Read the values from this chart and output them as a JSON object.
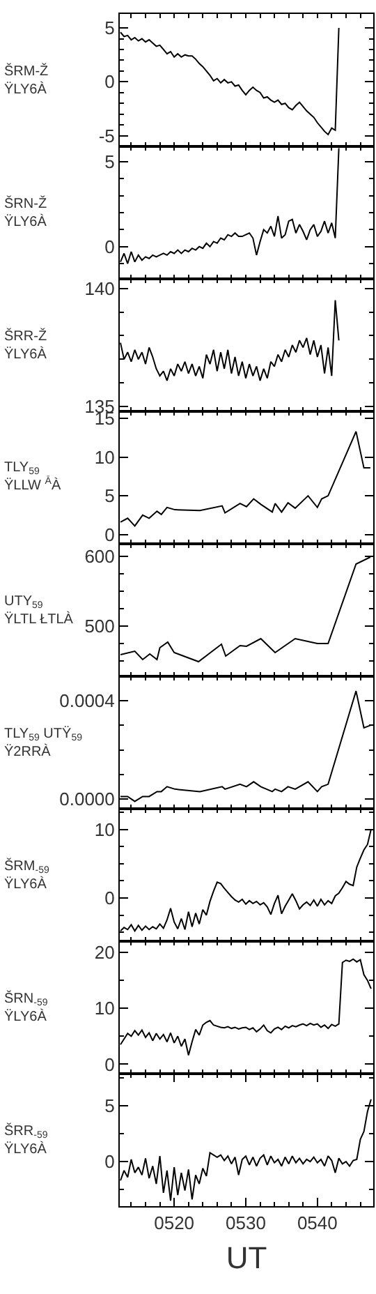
{
  "chart_data": [
    {
      "type": "line",
      "ylabel": "ŠRM-Ž\nŸLY6À",
      "color": "#000000",
      "tick_labels": "y",
      "grid": false,
      "marker": "none",
      "line_style": "solid",
      "x": [
        512.5,
        513,
        513.5,
        514,
        514.5,
        515,
        515.5,
        516,
        516.5,
        517,
        517.5,
        518,
        518.5,
        519,
        519.5,
        520,
        520.5,
        521,
        521.5,
        522,
        522.5,
        523,
        523.5,
        524,
        524.5,
        525,
        525.5,
        526,
        526.5,
        527,
        527.5,
        528,
        528.5,
        529,
        529.5,
        530,
        530.5,
        531,
        531.5,
        532,
        532.5,
        533,
        533.5,
        534,
        534.5,
        535,
        535.5,
        536,
        536.5,
        537,
        537.5,
        538,
        538.5,
        539,
        539.5,
        540,
        540.5,
        541,
        541.5,
        542,
        542.5,
        543
      ],
      "values": [
        4.6,
        4.2,
        4.3,
        3.9,
        4.1,
        3.8,
        4.0,
        3.7,
        3.9,
        3.6,
        3.3,
        3.4,
        3.0,
        2.6,
        2.8,
        2.3,
        2.6,
        2.3,
        2.5,
        2.4,
        2.4,
        2.1,
        1.7,
        1.4,
        1.0,
        0.6,
        0.1,
        0.3,
        -0.1,
        0.2,
        -0.1,
        0.0,
        -0.4,
        -0.3,
        -0.8,
        -1.2,
        -0.8,
        -0.5,
        -0.8,
        -1.0,
        -1.5,
        -1.4,
        -1.7,
        -1.9,
        -1.7,
        -2.1,
        -2.0,
        -2.4,
        -2.6,
        -2.2,
        -1.9,
        -2.3,
        -2.7,
        -3.0,
        -3.3,
        -3.8,
        -4.2,
        -4.6,
        -4.9,
        -4.3,
        -4.5,
        5.0
      ],
      "xlim": [
        512.4,
        547.8
      ],
      "ylim": [
        -6.0,
        6.3
      ],
      "xticks": [
        {
          "value": 514,
          "label": null
        },
        {
          "value": 516,
          "label": null
        },
        {
          "value": 518,
          "label": null
        },
        {
          "value": 520,
          "label": null
        },
        {
          "value": 522,
          "label": null
        },
        {
          "value": 524,
          "label": null
        },
        {
          "value": 526,
          "label": null
        },
        {
          "value": 528,
          "label": null
        },
        {
          "value": 530,
          "label": null
        },
        {
          "value": 532,
          "label": null
        },
        {
          "value": 534,
          "label": null
        },
        {
          "value": 536,
          "label": null
        },
        {
          "value": 538,
          "label": null
        },
        {
          "value": 540,
          "label": null
        },
        {
          "value": 542,
          "label": null
        },
        {
          "value": 544,
          "label": null
        },
        {
          "value": 546,
          "label": null
        }
      ],
      "yticks": [
        -5,
        {
          "value": -4,
          "label": null
        },
        {
          "value": -3,
          "label": null
        },
        {
          "value": -2,
          "label": null
        },
        {
          "value": -1,
          "label": null
        },
        0,
        {
          "value": 1,
          "label": null
        },
        {
          "value": 2,
          "label": null
        },
        {
          "value": 3,
          "label": null
        },
        {
          "value": 4,
          "label": null
        },
        5
      ]
    },
    {
      "type": "line",
      "ylabel": "ŠRN-Ž\nŸLY6À",
      "color": "#000000",
      "tick_labels": "y",
      "grid": false,
      "marker": "none",
      "line_style": "solid",
      "x": [
        512.5,
        513,
        513.5,
        514,
        514.5,
        515,
        515.5,
        516,
        516.5,
        517,
        517.5,
        518,
        518.5,
        519,
        519.5,
        520,
        520.5,
        521,
        521.5,
        522,
        522.5,
        523,
        523.5,
        524,
        524.5,
        525,
        525.5,
        526,
        526.5,
        527,
        527.5,
        528,
        528.5,
        529,
        529.5,
        530,
        530.5,
        531,
        531.5,
        532,
        532.5,
        533,
        533.5,
        534,
        534.5,
        535,
        535.5,
        536,
        536.5,
        537,
        537.5,
        538,
        538.5,
        539,
        539.5,
        540,
        540.5,
        541,
        541.5,
        542,
        542.5,
        543
      ],
      "values": [
        -0.9,
        -0.4,
        -1.0,
        -0.3,
        -0.9,
        -0.5,
        -0.8,
        -0.6,
        -0.7,
        -0.5,
        -0.6,
        -0.5,
        -0.4,
        -0.5,
        -0.3,
        -0.4,
        -0.2,
        -0.4,
        -0.2,
        -0.3,
        -0.1,
        -0.2,
        0.0,
        -0.1,
        0.2,
        0.0,
        0.3,
        0.2,
        0.5,
        0.4,
        0.7,
        0.6,
        0.8,
        0.6,
        0.6,
        0.7,
        0.8,
        0.5,
        -0.5,
        0.3,
        1.0,
        0.8,
        1.2,
        0.6,
        1.8,
        0.5,
        0.7,
        1.5,
        1.6,
        0.8,
        1.3,
        0.9,
        0.4,
        1.0,
        1.3,
        0.6,
        0.9,
        1.5,
        0.8,
        1.4,
        0.5,
        5.8
      ],
      "xlim": [
        512.4,
        547.8
      ],
      "ylim": [
        -1.9,
        5.9
      ],
      "xticks": [
        {
          "value": 514,
          "label": null
        },
        {
          "value": 516,
          "label": null
        },
        {
          "value": 518,
          "label": null
        },
        {
          "value": 520,
          "label": null
        },
        {
          "value": 522,
          "label": null
        },
        {
          "value": 524,
          "label": null
        },
        {
          "value": 526,
          "label": null
        },
        {
          "value": 528,
          "label": null
        },
        {
          "value": 530,
          "label": null
        },
        {
          "value": 532,
          "label": null
        },
        {
          "value": 534,
          "label": null
        },
        {
          "value": 536,
          "label": null
        },
        {
          "value": 538,
          "label": null
        },
        {
          "value": 540,
          "label": null
        },
        {
          "value": 542,
          "label": null
        },
        {
          "value": 544,
          "label": null
        },
        {
          "value": 546,
          "label": null
        }
      ],
      "yticks": [
        {
          "value": -1,
          "label": null
        },
        0,
        {
          "value": 1,
          "label": null
        },
        {
          "value": 2,
          "label": null
        },
        {
          "value": 3,
          "label": null
        },
        {
          "value": 4,
          "label": null
        },
        5
      ]
    },
    {
      "type": "line",
      "ylabel": "ŠRR-Ž\nŸLY6À",
      "color": "#000000",
      "tick_labels": "y",
      "grid": false,
      "marker": "none",
      "line_style": "solid",
      "x": [
        512.5,
        513,
        513.5,
        514,
        514.5,
        515,
        515.5,
        516,
        516.5,
        517,
        517.5,
        518,
        518.5,
        519,
        519.5,
        520,
        520.5,
        521,
        521.5,
        522,
        522.5,
        523,
        523.5,
        524,
        524.5,
        525,
        525.5,
        526,
        526.5,
        527,
        527.5,
        528,
        528.5,
        529,
        529.5,
        530,
        530.5,
        531,
        531.5,
        532,
        532.5,
        533,
        533.5,
        534,
        534.5,
        535,
        535.5,
        536,
        536.5,
        537,
        537.5,
        538,
        538.5,
        539,
        539.5,
        540,
        540.5,
        541,
        541.5,
        542,
        542.5,
        543
      ],
      "values": [
        137.7,
        137.0,
        137.3,
        136.9,
        137.4,
        137.0,
        137.3,
        136.8,
        137.5,
        137.1,
        136.6,
        136.3,
        136.5,
        136.1,
        136.6,
        136.3,
        136.8,
        136.5,
        136.9,
        136.4,
        136.8,
        136.3,
        136.7,
        136.2,
        137.2,
        136.8,
        137.4,
        136.5,
        137.3,
        136.6,
        137.4,
        136.4,
        137.1,
        136.3,
        136.9,
        136.2,
        136.8,
        136.3,
        136.7,
        136.1,
        136.6,
        136.2,
        136.9,
        136.7,
        137.2,
        136.9,
        137.4,
        137.1,
        137.6,
        137.3,
        137.8,
        137.5,
        137.9,
        137.2,
        137.8,
        137.1,
        137.6,
        136.4,
        137.5,
        136.3,
        139.5,
        137.8
      ],
      "xlim": [
        512.4,
        547.8
      ],
      "ylim": [
        134.8,
        140.4
      ],
      "xticks": [
        {
          "value": 514,
          "label": null
        },
        {
          "value": 516,
          "label": null
        },
        {
          "value": 518,
          "label": null
        },
        {
          "value": 520,
          "label": null
        },
        {
          "value": 522,
          "label": null
        },
        {
          "value": 524,
          "label": null
        },
        {
          "value": 526,
          "label": null
        },
        {
          "value": 528,
          "label": null
        },
        {
          "value": 530,
          "label": null
        },
        {
          "value": 532,
          "label": null
        },
        {
          "value": 534,
          "label": null
        },
        {
          "value": 536,
          "label": null
        },
        {
          "value": 538,
          "label": null
        },
        {
          "value": 540,
          "label": null
        },
        {
          "value": 542,
          "label": null
        },
        {
          "value": 544,
          "label": null
        },
        {
          "value": 546,
          "label": null
        }
      ],
      "yticks": [
        135,
        {
          "value": 136,
          "label": null
        },
        {
          "value": 137,
          "label": null
        },
        {
          "value": 138,
          "label": null
        },
        {
          "value": 139,
          "label": null
        },
        140
      ]
    },
    {
      "type": "line",
      "ylabel": "TLY$_{59}$\nŸLLW $^{Ā}$À",
      "color": "#000000",
      "tick_labels": "y",
      "grid": false,
      "marker": "none",
      "line_style": "solid",
      "x": [
        512.5,
        513.5,
        514.5,
        515.6,
        516.5,
        517.6,
        518.2,
        519,
        520.1,
        523.6,
        526.7,
        527.1,
        529.2,
        530.1,
        531.1,
        532.1,
        533.7,
        534.1,
        535,
        535.9,
        536.9,
        538.7,
        540,
        540.6,
        541.5,
        545.4,
        546.5,
        547.4
      ],
      "values": [
        1.6,
        2.1,
        1.1,
        2.5,
        2.1,
        3.0,
        2.6,
        3.5,
        3.2,
        3.1,
        3.7,
        2.8,
        4.0,
        3.6,
        4.6,
        3.9,
        2.9,
        4.0,
        2.9,
        4.1,
        3.4,
        5.0,
        3.5,
        4.6,
        5.0,
        13.3,
        8.6,
        8.6
      ],
      "xlim": [
        512.4,
        547.8
      ],
      "ylim": [
        -1.2,
        15.9
      ],
      "xticks": [
        {
          "value": 514,
          "label": null
        },
        {
          "value": 516,
          "label": null
        },
        {
          "value": 518,
          "label": null
        },
        {
          "value": 520,
          "label": null
        },
        {
          "value": 522,
          "label": null
        },
        {
          "value": 524,
          "label": null
        },
        {
          "value": 526,
          "label": null
        },
        {
          "value": 528,
          "label": null
        },
        {
          "value": 530,
          "label": null
        },
        {
          "value": 532,
          "label": null
        },
        {
          "value": 534,
          "label": null
        },
        {
          "value": 536,
          "label": null
        },
        {
          "value": 538,
          "label": null
        },
        {
          "value": 540,
          "label": null
        },
        {
          "value": 542,
          "label": null
        },
        {
          "value": 544,
          "label": null
        },
        {
          "value": 546,
          "label": null
        }
      ],
      "yticks": [
        0,
        5,
        10,
        15
      ]
    },
    {
      "type": "line",
      "ylabel": "UTY$_{59}$\nŸLTL ŁTLÀ",
      "color": "#000000",
      "tick_labels": "y",
      "grid": false,
      "marker": "none",
      "line_style": "solid",
      "x": [
        512.5,
        514.5,
        515.6,
        516.6,
        517.6,
        518,
        519.1,
        520,
        523.4,
        526.6,
        527.2,
        529.2,
        530.1,
        532.1,
        534.1,
        536.9,
        540,
        541.5,
        545.4,
        547.4
      ],
      "values": [
        459,
        464,
        452,
        460,
        452,
        469,
        477,
        462,
        449,
        474,
        457,
        472,
        471,
        482,
        462,
        482,
        475,
        475,
        589,
        599
      ],
      "xlim": [
        512.4,
        547.8
      ],
      "ylim": [
        428,
        618
      ],
      "xticks": [
        {
          "value": 514,
          "label": null
        },
        {
          "value": 516,
          "label": null
        },
        {
          "value": 518,
          "label": null
        },
        {
          "value": 520,
          "label": null
        },
        {
          "value": 522,
          "label": null
        },
        {
          "value": 524,
          "label": null
        },
        {
          "value": 526,
          "label": null
        },
        {
          "value": 528,
          "label": null
        },
        {
          "value": 530,
          "label": null
        },
        {
          "value": 532,
          "label": null
        },
        {
          "value": 534,
          "label": null
        },
        {
          "value": 536,
          "label": null
        },
        {
          "value": 538,
          "label": null
        },
        {
          "value": 540,
          "label": null
        },
        {
          "value": 542,
          "label": null
        },
        {
          "value": 544,
          "label": null
        },
        {
          "value": 546,
          "label": null
        }
      ],
      "yticks": [
        {
          "value": 450,
          "label": null
        },
        {
          "value": 475,
          "label": null
        },
        500,
        {
          "value": 525,
          "label": null
        },
        {
          "value": 550,
          "label": null
        },
        {
          "value": 575,
          "label": null
        },
        600
      ]
    },
    {
      "type": "line",
      "ylabel": "TLY$_{59}$ UTŸ$_{59}$\nŸ2RRÀ",
      "color": "#000000",
      "tick_labels": "y",
      "grid": false,
      "marker": "none",
      "line_style": "solid",
      "x": [
        512.5,
        513.5,
        514.5,
        515.6,
        516.5,
        517.6,
        518.2,
        519,
        520.1,
        523.6,
        526.7,
        527.1,
        529.2,
        530.1,
        531.1,
        532.1,
        533.7,
        534.1,
        535,
        535.9,
        536.9,
        538.7,
        540,
        540.6,
        541.5,
        545.4,
        546.5,
        547.4
      ],
      "values": [
        1e-05,
        1e-05,
        -1e-05,
        1e-05,
        1e-05,
        3e-05,
        3e-05,
        5e-05,
        4e-05,
        3e-05,
        5e-05,
        4e-05,
        6e-05,
        5e-05,
        7e-05,
        5e-05,
        3e-05,
        4e-05,
        3e-05,
        5e-05,
        4e-05,
        7e-05,
        3e-05,
        5e-05,
        6e-05,
        0.00044,
        0.00029,
        0.0003
      ],
      "xlim": [
        512.4,
        547.8
      ],
      "ylim": [
        -4e-05,
        0.0005
      ],
      "xticks": [
        {
          "value": 514,
          "label": null
        },
        {
          "value": 516,
          "label": null
        },
        {
          "value": 518,
          "label": null
        },
        {
          "value": 520,
          "label": null
        },
        {
          "value": 522,
          "label": null
        },
        {
          "value": 524,
          "label": null
        },
        {
          "value": 526,
          "label": null
        },
        {
          "value": 528,
          "label": null
        },
        {
          "value": 530,
          "label": null
        },
        {
          "value": 532,
          "label": null
        },
        {
          "value": 534,
          "label": null
        },
        {
          "value": 536,
          "label": null
        },
        {
          "value": 538,
          "label": null
        },
        {
          "value": 540,
          "label": null
        },
        {
          "value": 542,
          "label": null
        },
        {
          "value": 544,
          "label": null
        },
        {
          "value": 546,
          "label": null
        }
      ],
      "yticks": [
        {
          "value": 0,
          "label": "0.0000"
        },
        {
          "value": 0.0001,
          "label": null
        },
        {
          "value": 0.0002,
          "label": null
        },
        {
          "value": 0.0003,
          "label": null
        },
        {
          "value": 0.0004,
          "label": "0.0004"
        }
      ]
    },
    {
      "type": "line",
      "ylabel": "ŠRM$_{-59}$\nŸLY6À",
      "color": "#000000",
      "tick_labels": "y",
      "grid": false,
      "marker": "none",
      "line_style": "solid",
      "x": [
        512.5,
        513,
        513.5,
        514,
        514.5,
        515,
        515.5,
        516,
        516.5,
        517,
        517.5,
        518,
        518.5,
        519,
        519.5,
        520,
        520.5,
        521,
        521.5,
        522,
        522.5,
        523,
        523.5,
        524,
        524.5,
        525,
        525.5,
        526,
        526.5,
        527,
        527.5,
        528,
        528.5,
        529,
        529.5,
        530,
        530.5,
        531,
        531.5,
        532,
        532.5,
        533,
        533.5,
        534,
        534.5,
        535,
        535.5,
        536,
        536.5,
        537,
        537.5,
        538,
        538.5,
        539,
        539.5,
        540,
        540.5,
        541,
        541.5,
        542,
        542.5,
        543,
        543.5,
        544,
        544.5,
        545,
        545.5,
        546,
        546.5,
        547,
        547.5
      ],
      "values": [
        -4.8,
        -4.3,
        -4.6,
        -3.9,
        -4.8,
        -4.0,
        -4.7,
        -4.1,
        -4.6,
        -4.2,
        -4.5,
        -3.8,
        -4.4,
        -3.2,
        -1.5,
        -3.5,
        -4.5,
        -3.0,
        -4.6,
        -2.0,
        -4.2,
        -2.2,
        -3.8,
        -1.7,
        -2.5,
        -0.5,
        1.0,
        2.3,
        2.1,
        1.4,
        0.8,
        0.2,
        -0.3,
        -0.6,
        -0.2,
        -0.9,
        -0.4,
        -0.8,
        -0.5,
        -1.0,
        -0.7,
        -1.3,
        -2.4,
        -0.8,
        0.4,
        -2.3,
        -1.2,
        -0.3,
        0.6,
        -0.4,
        -1.6,
        -1.0,
        -0.6,
        -1.1,
        -0.3,
        -1.2,
        -0.2,
        -1.0,
        -0.4,
        -0.8,
        0.3,
        0.7,
        1.5,
        2.4,
        2.0,
        1.8,
        4.5,
        5.8,
        7.0,
        7.8,
        10.0
      ],
      "xlim": [
        512.4,
        547.8
      ],
      "ylim": [
        -6.3,
        13.0
      ],
      "xticks": [
        {
          "value": 514,
          "label": null
        },
        {
          "value": 516,
          "label": null
        },
        {
          "value": 518,
          "label": null
        },
        {
          "value": 520,
          "label": null
        },
        {
          "value": 522,
          "label": null
        },
        {
          "value": 524,
          "label": null
        },
        {
          "value": 526,
          "label": null
        },
        {
          "value": 528,
          "label": null
        },
        {
          "value": 530,
          "label": null
        },
        {
          "value": 532,
          "label": null
        },
        {
          "value": 534,
          "label": null
        },
        {
          "value": 536,
          "label": null
        },
        {
          "value": 538,
          "label": null
        },
        {
          "value": 540,
          "label": null
        },
        {
          "value": 542,
          "label": null
        },
        {
          "value": 544,
          "label": null
        },
        {
          "value": 546,
          "label": null
        }
      ],
      "yticks": [
        {
          "value": -5,
          "label": null
        },
        {
          "value": -2.5,
          "label": null
        },
        0,
        {
          "value": 2.5,
          "label": null
        },
        {
          "value": 5,
          "label": null
        },
        {
          "value": 7.5,
          "label": null
        },
        10,
        {
          "value": 12.5,
          "label": null
        }
      ]
    },
    {
      "type": "line",
      "ylabel": "ŠRN$_{-59}$\nŸLY6À",
      "color": "#000000",
      "tick_labels": "y",
      "grid": false,
      "marker": "none",
      "line_style": "solid",
      "x": [
        512.5,
        513,
        513.5,
        514,
        514.5,
        515,
        515.5,
        516,
        516.5,
        517,
        517.5,
        518,
        518.5,
        519,
        519.5,
        520,
        520.5,
        521,
        521.5,
        522,
        522.5,
        523,
        523.5,
        524,
        524.5,
        525,
        525.5,
        526,
        526.5,
        527,
        527.5,
        528,
        528.5,
        529,
        529.5,
        530,
        530.5,
        531,
        531.5,
        532,
        532.5,
        533,
        533.5,
        534,
        534.5,
        535,
        535.5,
        536,
        536.5,
        537,
        537.5,
        538,
        538.5,
        539,
        539.5,
        540,
        540.5,
        541,
        541.5,
        542,
        542.5,
        543,
        543.5,
        544,
        544.5,
        545,
        545.5,
        546,
        546.5,
        547,
        547.5
      ],
      "values": [
        3.5,
        4.5,
        5.5,
        5.0,
        6.0,
        5.2,
        6.1,
        4.8,
        5.6,
        4.2,
        5.5,
        4.5,
        5.3,
        4.0,
        5.6,
        3.8,
        5.0,
        3.2,
        4.5,
        1.6,
        4.0,
        6.2,
        5.2,
        7.0,
        7.5,
        7.8,
        7.0,
        6.8,
        6.6,
        6.5,
        6.7,
        6.4,
        6.6,
        6.3,
        6.5,
        6.6,
        6.2,
        6.5,
        5.8,
        6.3,
        7.0,
        6.0,
        5.6,
        6.3,
        6.6,
        6.2,
        6.8,
        6.5,
        6.9,
        6.7,
        7.0,
        7.2,
        6.9,
        7.3,
        7.0,
        7.2,
        6.6,
        7.0,
        6.4,
        7.1,
        6.8,
        7.2,
        18.2,
        18.6,
        18.4,
        18.8,
        18.3,
        18.7,
        16.0,
        15.0,
        13.5
      ],
      "xlim": [
        512.4,
        547.8
      ],
      "ylim": [
        -1.7,
        22.0
      ],
      "xticks": [
        {
          "value": 514,
          "label": null
        },
        {
          "value": 516,
          "label": null
        },
        {
          "value": 518,
          "label": null
        },
        {
          "value": 520,
          "label": null
        },
        {
          "value": 522,
          "label": null
        },
        {
          "value": 524,
          "label": null
        },
        {
          "value": 526,
          "label": null
        },
        {
          "value": 528,
          "label": null
        },
        {
          "value": 530,
          "label": null
        },
        {
          "value": 532,
          "label": null
        },
        {
          "value": 534,
          "label": null
        },
        {
          "value": 536,
          "label": null
        },
        {
          "value": 538,
          "label": null
        },
        {
          "value": 540,
          "label": null
        },
        {
          "value": 542,
          "label": null
        },
        {
          "value": 544,
          "label": null
        },
        {
          "value": 546,
          "label": null
        }
      ],
      "yticks": [
        0,
        {
          "value": 5,
          "label": null
        },
        10,
        {
          "value": 15,
          "label": null
        },
        20
      ]
    },
    {
      "type": "line",
      "ylabel": "ŠRR$_{-59}$\nŸLY6À",
      "xlabel": "UT",
      "color": "#000000",
      "grid": false,
      "marker": "none",
      "line_style": "solid",
      "x": [
        512.5,
        513,
        513.5,
        514,
        514.5,
        515,
        515.5,
        516,
        516.5,
        517,
        517.5,
        518,
        518.5,
        519,
        519.5,
        520,
        520.5,
        521,
        521.5,
        522,
        522.5,
        523,
        523.5,
        524,
        524.5,
        525,
        525.5,
        526,
        526.5,
        527,
        527.5,
        528,
        528.5,
        529,
        529.5,
        530,
        530.5,
        531,
        531.5,
        532,
        532.5,
        533,
        533.5,
        534,
        534.5,
        535,
        535.5,
        536,
        536.5,
        537,
        537.5,
        538,
        538.5,
        539,
        539.5,
        540,
        540.5,
        541,
        541.5,
        542,
        542.5,
        543,
        543.5,
        544,
        544.5,
        545,
        545.5,
        546,
        546.5,
        547,
        547.5
      ],
      "values": [
        -1.7,
        -0.8,
        -1.4,
        0.2,
        -1.0,
        -0.5,
        -1.2,
        0.3,
        -1.5,
        -0.4,
        -2.0,
        0.5,
        -2.8,
        -0.8,
        -3.5,
        -0.5,
        -3.0,
        -1.0,
        -2.6,
        -0.7,
        -3.4,
        -1.2,
        -2.0,
        -0.6,
        -1.3,
        0.8,
        0.6,
        0.4,
        0.6,
        0.1,
        0.5,
        -0.2,
        0.4,
        -1.2,
        0.2,
        0.5,
        -0.3,
        0.4,
        -0.4,
        0.3,
        0.6,
        -0.3,
        0.5,
        -0.1,
        0.2,
        -0.4,
        0.4,
        -0.2,
        0.5,
        -0.1,
        0.3,
        -0.2,
        0.2,
        0.0,
        0.4,
        -0.1,
        0.2,
        -0.4,
        0.5,
        0.1,
        -1.0,
        0.3,
        -0.2,
        0.0,
        -0.4,
        0.1,
        0.2,
        2.0,
        2.7,
        4.5,
        5.6
      ],
      "xlim": [
        512.4,
        547.8
      ],
      "ylim": [
        -4.0,
        7.9
      ],
      "xticks": [
        {
          "value": 514,
          "label": null
        },
        {
          "value": 516,
          "label": null
        },
        {
          "value": 518,
          "label": null
        },
        {
          "value": 520,
          "label": "0520"
        },
        {
          "value": 522,
          "label": null
        },
        {
          "value": 524,
          "label": null
        },
        {
          "value": 526,
          "label": null
        },
        {
          "value": 528,
          "label": null
        },
        {
          "value": 530,
          "label": "0530"
        },
        {
          "value": 532,
          "label": null
        },
        {
          "value": 534,
          "label": null
        },
        {
          "value": 536,
          "label": null
        },
        {
          "value": 538,
          "label": null
        },
        {
          "value": 540,
          "label": "0540"
        },
        {
          "value": 542,
          "label": null
        },
        {
          "value": 544,
          "label": null
        },
        {
          "value": 546,
          "label": null
        }
      ],
      "yticks": [
        {
          "value": -2.5,
          "label": null
        },
        0,
        {
          "value": 2.5,
          "label": null
        },
        5,
        {
          "value": 7.5,
          "label": null
        }
      ]
    }
  ]
}
